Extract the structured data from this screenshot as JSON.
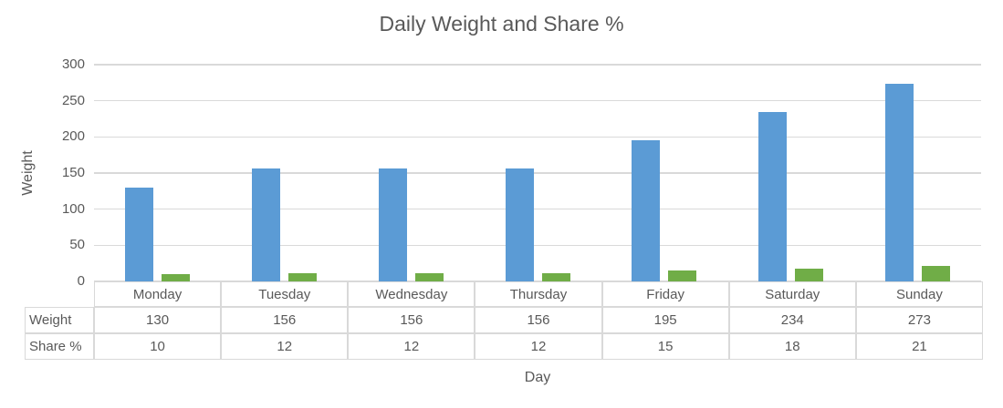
{
  "title": "Daily Weight and Share %",
  "colors": {
    "weight_bar": "#5B9BD5",
    "share_bar": "#70AD47",
    "text": "#595959",
    "gridline": "#D9D9D9",
    "table_border": "#D9D9D9"
  },
  "chart_data": {
    "type": "bar",
    "title": "Daily Weight and Share %",
    "categories": [
      "Monday",
      "Tuesday",
      "Wednesday",
      "Thursday",
      "Friday",
      "Saturday",
      "Sunday"
    ],
    "series": [
      {
        "name": "Weight",
        "color": "#5B9BD5",
        "values": [
          130,
          156,
          156,
          156,
          195,
          234,
          273
        ]
      },
      {
        "name": "Share %",
        "color": "#70AD47",
        "values": [
          10,
          12,
          12,
          12,
          15,
          18,
          21
        ]
      }
    ],
    "xlabel": "Day",
    "ylabel": "Weight",
    "ylim": [
      0,
      300
    ],
    "yticks": [
      0,
      50,
      100,
      150,
      200,
      250,
      300
    ],
    "grid": true,
    "legend": "none",
    "data_table_below_chart": true
  }
}
